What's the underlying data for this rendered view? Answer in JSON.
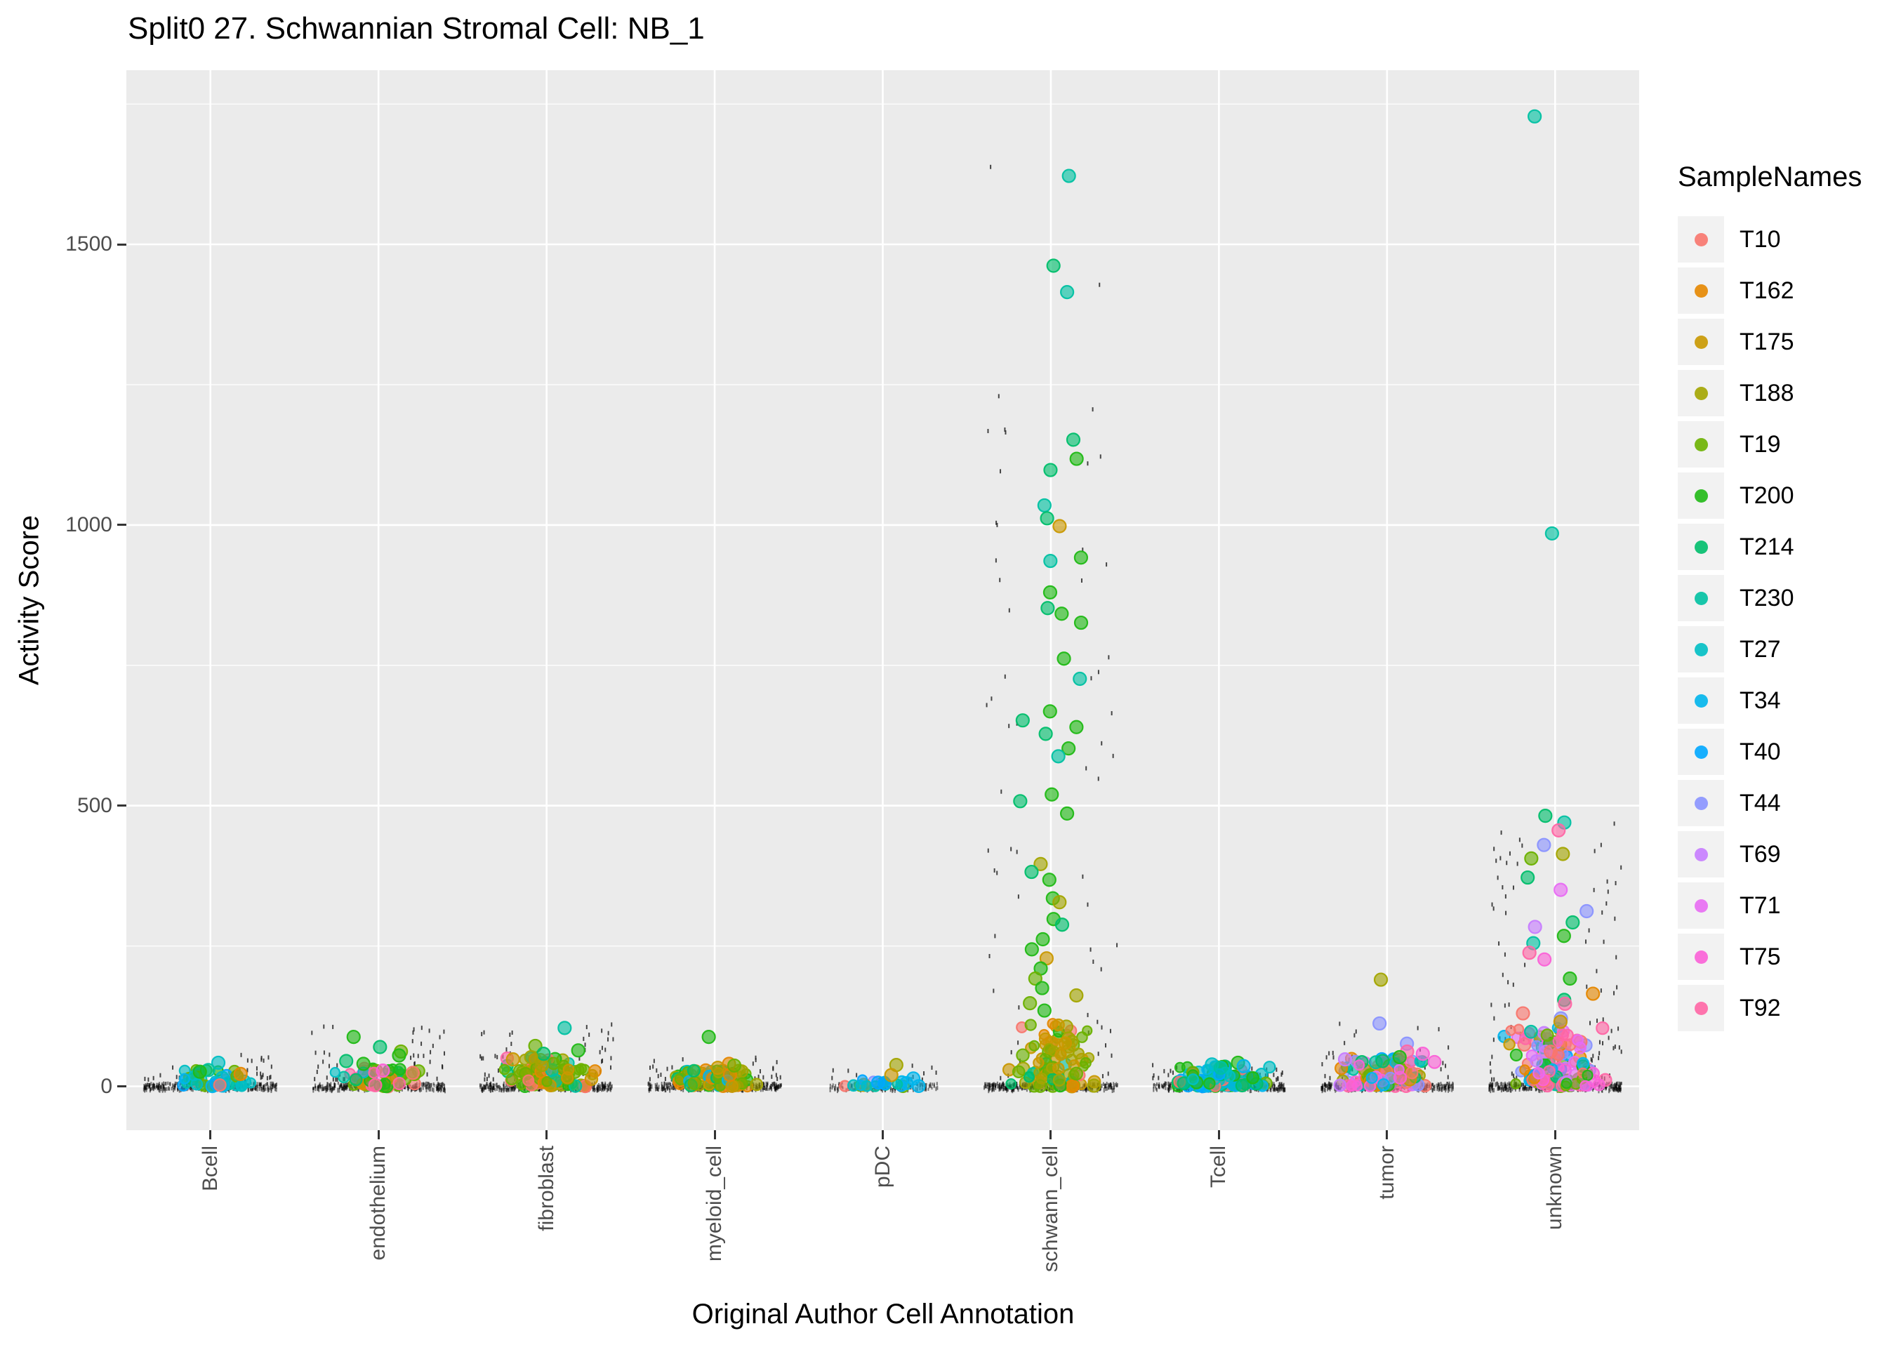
{
  "legend": {
    "title": "SampleNames"
  },
  "chart_data": {
    "type": "scatter",
    "subtype": "jitter-strip",
    "title": "Split0 27. Schwannian Stromal Cell: NB_1",
    "xlabel": "Original Author Cell Annotation",
    "ylabel": "Activity Score",
    "ylim": [
      -80,
      1810
    ],
    "yticks": [
      0,
      500,
      1000,
      1500
    ],
    "yticks_minor": [
      250,
      750,
      1250,
      1750
    ],
    "grid": true,
    "legend_position": "right",
    "categories": [
      "Bcell",
      "endothelium",
      "fibroblast",
      "myeloid_cell",
      "pDC",
      "schwann_cell",
      "Tcell",
      "tumor",
      "unknown"
    ],
    "samples": [
      "T10",
      "T162",
      "T175",
      "T188",
      "T19",
      "T200",
      "T214",
      "T230",
      "T27",
      "T34",
      "T40",
      "T44",
      "T69",
      "T71",
      "T75",
      "T92"
    ],
    "palette": {
      "T10": "#F8766D",
      "T162": "#E58700",
      "T175": "#C99800",
      "T188": "#A3A500",
      "T19": "#6BB100",
      "T200": "#20B915",
      "T214": "#00BE6C",
      "T230": "#00C1A2",
      "T27": "#00BFC4",
      "T34": "#00B5EC",
      "T40": "#00A7FF",
      "T44": "#8A93FF",
      "T69": "#C77CFF",
      "T71": "#E86BF3",
      "T75": "#FB61D7",
      "T92": "#FF66A5"
    },
    "groups": [
      {
        "category": "Bcell",
        "cluster": {
          "count": 46,
          "y_max": 30,
          "jitter": 62,
          "samples": [
            "T27",
            "T27",
            "T230",
            "T34",
            "T19",
            "T200",
            "T162",
            "T10",
            "T40",
            "T230",
            "T19",
            "T214",
            "T27"
          ]
        },
        "features": [
          [
            "T27",
            42
          ],
          [
            "T230",
            29
          ],
          [
            "T200",
            26
          ],
          [
            "T162",
            22
          ]
        ],
        "rug": {
          "count": 300,
          "half_width": 95
        },
        "dashes": {
          "count": 26,
          "y_max": 56,
          "extra": []
        }
      },
      {
        "category": "endothelium",
        "cluster": {
          "count": 62,
          "y_max": 34,
          "jitter": 68,
          "samples": [
            "T200",
            "T19",
            "T19",
            "T214",
            "T188",
            "T162",
            "T75",
            "T10",
            "T230",
            "T200",
            "T27",
            "T92",
            "T19",
            "T200"
          ]
        },
        "features": [
          [
            "T200",
            88
          ],
          [
            "T214",
            70
          ],
          [
            "T19",
            62
          ],
          [
            "T200",
            55
          ],
          [
            "T214",
            45
          ],
          [
            "T200",
            40
          ],
          [
            "T75",
            28
          ],
          [
            "T10",
            24
          ]
        ],
        "rug": {
          "count": 320,
          "half_width": 95
        },
        "dashes": {
          "count": 42,
          "y_max": 108,
          "extra": []
        }
      },
      {
        "category": "fibroblast",
        "cluster": {
          "count": 95,
          "y_max": 52,
          "jitter": 72,
          "samples": [
            "T19",
            "T19",
            "T188",
            "T175",
            "T200",
            "T214",
            "T162",
            "T19",
            "T188",
            "T200",
            "T230",
            "T10",
            "T92",
            "T175",
            "T19"
          ]
        },
        "features": [
          [
            "T230",
            104
          ],
          [
            "T19",
            72
          ],
          [
            "T200",
            64
          ],
          [
            "T214",
            58
          ],
          [
            "T188",
            52
          ],
          [
            "T175",
            48
          ]
        ],
        "rug": {
          "count": 340,
          "half_width": 95
        },
        "dashes": {
          "count": 48,
          "y_max": 112,
          "extra": []
        }
      },
      {
        "category": "myeloid_cell",
        "cluster": {
          "count": 85,
          "y_max": 30,
          "jitter": 70,
          "samples": [
            "T162",
            "T175",
            "T188",
            "T19",
            "T200",
            "T10",
            "T162",
            "T175",
            "T19",
            "T214",
            "T34",
            "T27",
            "T188",
            "T162"
          ]
        },
        "features": [
          [
            "T200",
            88
          ],
          [
            "T162",
            40
          ],
          [
            "T19",
            37
          ],
          [
            "T175",
            33
          ]
        ],
        "rug": {
          "count": 330,
          "half_width": 95
        },
        "dashes": {
          "count": 28,
          "y_max": 54,
          "extra": []
        }
      },
      {
        "category": "pDC",
        "cluster": {
          "count": 22,
          "y_max": 13,
          "jitter": 55,
          "samples": [
            "T34",
            "T40",
            "T27",
            "T19",
            "T175",
            "T10",
            "T230",
            "T34",
            "T40",
            "T44"
          ]
        },
        "features": [
          [
            "T188",
            38
          ],
          [
            "T175",
            20
          ],
          [
            "T34",
            14
          ]
        ],
        "rug": {
          "count": 150,
          "half_width": 78
        },
        "dashes": {
          "count": 12,
          "y_max": 40,
          "extra": []
        }
      },
      {
        "category": "schwann_cell",
        "cluster": {
          "count": 92,
          "y_max": 112,
          "jitter": 70,
          "samples": [
            "T19",
            "T19",
            "T188",
            "T175",
            "T200",
            "T214",
            "T19",
            "T188",
            "T175",
            "T162",
            "T230",
            "T10",
            "T19",
            "T188",
            "T175"
          ]
        },
        "features": [
          [
            "T230",
            1622
          ],
          [
            "T214",
            1462
          ],
          [
            "T230",
            1415
          ],
          [
            "T214",
            1152
          ],
          [
            "T200",
            1118
          ],
          [
            "T214",
            1098
          ],
          [
            "T230",
            1035
          ],
          [
            "T214",
            1012
          ],
          [
            "T175",
            998
          ],
          [
            "T200",
            942
          ],
          [
            "T230",
            936
          ],
          [
            "T200",
            880
          ],
          [
            "T214",
            852
          ],
          [
            "T200",
            842
          ],
          [
            "T200",
            826
          ],
          [
            "T200",
            762
          ],
          [
            "T230",
            726
          ],
          [
            "T200",
            668
          ],
          [
            "T214",
            652
          ],
          [
            "T200",
            640
          ],
          [
            "T214",
            628
          ],
          [
            "T200",
            602
          ],
          [
            "T230",
            588
          ],
          [
            "T200",
            520
          ],
          [
            "T214",
            508
          ],
          [
            "T200",
            486
          ],
          [
            "T188",
            396
          ],
          [
            "T214",
            382
          ],
          [
            "T200",
            368
          ],
          [
            "T200",
            335
          ],
          [
            "T188",
            328
          ],
          [
            "T200",
            298
          ],
          [
            "T214",
            288
          ],
          [
            "T200",
            262
          ],
          [
            "T200",
            244
          ],
          [
            "T175",
            228
          ],
          [
            "T200",
            210
          ],
          [
            "T19",
            192
          ],
          [
            "T200",
            175
          ],
          [
            "T188",
            162
          ],
          [
            "T19",
            148
          ],
          [
            "T200",
            135
          ]
        ],
        "rug": {
          "count": 340,
          "half_width": 95
        },
        "dashes": {
          "count": 50,
          "y_max": 1260,
          "extra": [
            1638,
            1428,
            1165,
            1122,
            1000,
            956,
            848,
            730,
            642,
            525,
            420,
            338,
            232
          ]
        }
      },
      {
        "category": "Tcell",
        "cluster": {
          "count": 115,
          "y_max": 36,
          "jitter": 74,
          "samples": [
            "T27",
            "T34",
            "T40",
            "T230",
            "T200",
            "T214",
            "T19",
            "T27",
            "T34",
            "T40",
            "T10",
            "T44",
            "T27",
            "T200",
            "T230"
          ]
        },
        "features": [
          [
            "T200",
            42
          ],
          [
            "T27",
            39
          ],
          [
            "T34",
            36
          ],
          [
            "T230",
            33
          ]
        ],
        "rug": {
          "count": 350,
          "half_width": 95
        },
        "dashes": {
          "count": 24,
          "y_max": 46,
          "extra": []
        }
      },
      {
        "category": "tumor",
        "cluster": {
          "count": 120,
          "y_max": 50,
          "jitter": 74,
          "samples": [
            "T10",
            "T162",
            "T175",
            "T188",
            "T19",
            "T200",
            "T214",
            "T230",
            "T27",
            "T34",
            "T40",
            "T44",
            "T69",
            "T71",
            "T75",
            "T92",
            "T188",
            "T19",
            "T44",
            "T75",
            "T92",
            "T162",
            "T10"
          ]
        },
        "features": [
          [
            "T188",
            190
          ],
          [
            "T44",
            112
          ],
          [
            "T44",
            76
          ],
          [
            "T92",
            62
          ],
          [
            "T75",
            58
          ],
          [
            "T200",
            52
          ],
          [
            "T69",
            48
          ],
          [
            "T214",
            45
          ]
        ],
        "rug": {
          "count": 360,
          "half_width": 95
        },
        "dashes": {
          "count": 36,
          "y_max": 115,
          "extra": []
        }
      },
      {
        "category": "unknown",
        "cluster": {
          "count": 135,
          "y_max": 105,
          "jitter": 76,
          "samples": [
            "T92",
            "T75",
            "T71",
            "T69",
            "T44",
            "T10",
            "T162",
            "T188",
            "T19",
            "T200",
            "T214",
            "T230",
            "T34",
            "T40",
            "T175",
            "T92",
            "T75",
            "T44",
            "T10",
            "T200",
            "T19",
            "T162",
            "T92",
            "T71",
            "T69"
          ]
        },
        "features": [
          [
            "T230",
            1728
          ],
          [
            "T230",
            985
          ],
          [
            "T214",
            482
          ],
          [
            "T230",
            470
          ],
          [
            "T92",
            456
          ],
          [
            "T44",
            430
          ],
          [
            "T188",
            414
          ],
          [
            "T19",
            406
          ],
          [
            "T214",
            372
          ],
          [
            "T71",
            350
          ],
          [
            "T44",
            312
          ],
          [
            "T214",
            292
          ],
          [
            "T69",
            284
          ],
          [
            "T200",
            268
          ],
          [
            "T230",
            255
          ],
          [
            "T92",
            238
          ],
          [
            "T75",
            226
          ],
          [
            "T200",
            192
          ],
          [
            "T162",
            165
          ],
          [
            "T214",
            154
          ],
          [
            "T92",
            147
          ],
          [
            "T10",
            130
          ],
          [
            "T44",
            121
          ],
          [
            "T175",
            115
          ]
        ],
        "rug": {
          "count": 380,
          "half_width": 95
        },
        "dashes": {
          "count": 80,
          "y_max": 440,
          "extra": [
            468,
            452,
            430,
            398,
            362
          ]
        }
      }
    ]
  }
}
